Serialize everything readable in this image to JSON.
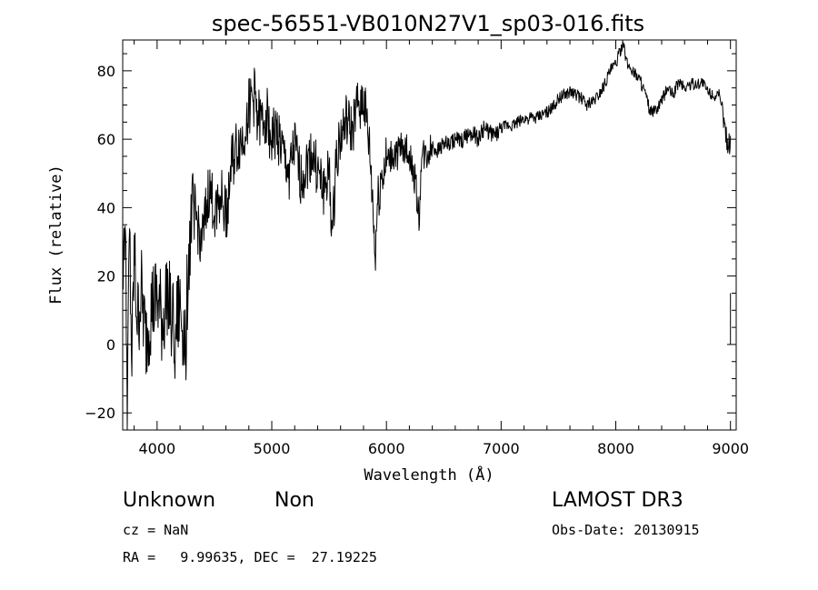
{
  "chart_data": {
    "type": "line",
    "title": "spec-56551-VB010N27V1_sp03-016.fits",
    "xlabel": "Wavelength (Å)",
    "ylabel": "Flux (relative)",
    "xlim": [
      3700,
      9050
    ],
    "ylim": [
      -25,
      89
    ],
    "x_ticks": [
      4000,
      5000,
      6000,
      7000,
      8000,
      9000
    ],
    "y_ticks": [
      -20,
      0,
      20,
      40,
      60,
      80
    ],
    "x_tick_labels": [
      "4000",
      "5000",
      "6000",
      "7000",
      "8000",
      "9000"
    ],
    "y_tick_labels": [
      "−20",
      "0",
      "20",
      "40",
      "60",
      "80"
    ],
    "grid": false,
    "series": [
      {
        "color": "#000000",
        "x": [
          3700,
          3720,
          3740,
          3760,
          3780,
          3800,
          3830,
          3860,
          3900,
          3950,
          4000,
          4050,
          4100,
          4150,
          4200,
          4250,
          4270,
          4290,
          4310,
          4330,
          4350,
          4400,
          4450,
          4500,
          4550,
          4600,
          4650,
          4700,
          4750,
          4800,
          4850,
          4900,
          4950,
          5000,
          5050,
          5100,
          5150,
          5200,
          5250,
          5300,
          5350,
          5400,
          5450,
          5500,
          5530,
          5560,
          5600,
          5650,
          5700,
          5750,
          5800,
          5850,
          5880,
          5900,
          5920,
          5950,
          6000,
          6050,
          6100,
          6150,
          6200,
          6250,
          6290,
          6300,
          6320,
          6350,
          6400,
          6450,
          6500,
          6550,
          6600,
          6650,
          6700,
          6750,
          6800,
          6850,
          6900,
          6950,
          7000,
          7050,
          7100,
          7150,
          7200,
          7250,
          7300,
          7350,
          7400,
          7450,
          7500,
          7550,
          7600,
          7650,
          7700,
          7750,
          7800,
          7850,
          7900,
          7950,
          8000,
          8030,
          8060,
          8100,
          8150,
          8200,
          8250,
          8300,
          8350,
          8400,
          8450,
          8500,
          8550,
          8600,
          8650,
          8700,
          8750,
          8800,
          8850,
          8900,
          8950,
          8980,
          9000
        ],
        "y": [
          20,
          38,
          -15,
          30,
          -8,
          25,
          5,
          15,
          0,
          10,
          12,
          5,
          18,
          2,
          10,
          0,
          25,
          30,
          42,
          38,
          35,
          30,
          45,
          40,
          45,
          38,
          52,
          58,
          60,
          70,
          72,
          64,
          68,
          60,
          62,
          55,
          50,
          58,
          48,
          52,
          56,
          50,
          45,
          50,
          30,
          55,
          60,
          65,
          62,
          70,
          72,
          58,
          42,
          25,
          40,
          48,
          53,
          55,
          56,
          58,
          55,
          48,
          35,
          54,
          55,
          55,
          58,
          57,
          59,
          58,
          60,
          59,
          61,
          62,
          60,
          63,
          62,
          61,
          63,
          64,
          64,
          65,
          66,
          66,
          66,
          67,
          68,
          69,
          72,
          73,
          74,
          73,
          72,
          70,
          71,
          73,
          76,
          80,
          82,
          85,
          88,
          82,
          80,
          78,
          74,
          68,
          68,
          71,
          75,
          73,
          77,
          75,
          76,
          76,
          77,
          74,
          73,
          72,
          64,
          58,
          60
        ]
      }
    ]
  },
  "annotations": {
    "object_type": "Unknown",
    "subclass": "Non",
    "survey": "LAMOST DR3",
    "redshift": "cz = NaN",
    "obs_date": "Obs-Date: 20130915",
    "coords": "RA =   9.99635, DEC =  27.19225"
  }
}
